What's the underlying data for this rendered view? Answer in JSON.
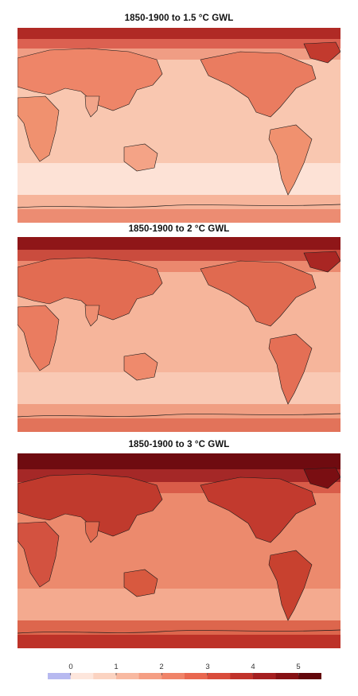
{
  "panels": [
    {
      "title": "1850-1900 to 1.5 °C GWL",
      "warming_level": 1.5
    },
    {
      "title": "1850-1900 to 2 °C GWL",
      "warming_level": 2
    },
    {
      "title": "1850-1900 to 3 °C GWL",
      "warming_level": 3
    }
  ],
  "colorbar": {
    "tick_labels": [
      "0",
      "1",
      "2",
      "3",
      "4",
      "5"
    ],
    "range": [
      -0.5,
      5.5
    ],
    "step": 0.5,
    "colors": [
      "#b7b9f0",
      "#fde6dc",
      "#fbd3c1",
      "#f8b9a1",
      "#f59e83",
      "#f08368",
      "#e9674f",
      "#d94c3b",
      "#c1332b",
      "#a51f20",
      "#861114",
      "#63080c"
    ]
  },
  "colors": {
    "ocean_base": "#f9c7b0",
    "southern_ocean": "#fcdccd",
    "land_warm": "#ef8a6c",
    "arctic": "#a51f20",
    "coastline": "#1a1a1a"
  }
}
